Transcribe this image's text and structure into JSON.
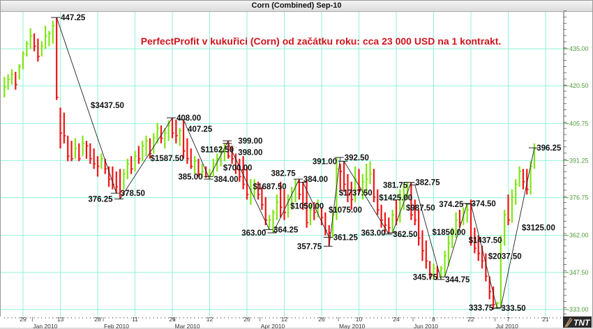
{
  "window": {
    "title": "Corn (Combined) Sep-10"
  },
  "chart_data": {
    "type": "ohlc-bar",
    "title": "Corn (Combined) Sep-10",
    "annotation": "PerfectProfit v kukuřici (Corn) od začátku roku: cca 23 000 USD na 1 kontrakt.",
    "ylim": [
      322,
      455
    ],
    "y_ticks": [
      {
        "value": 333.0,
        "label": "333.00"
      },
      {
        "value": 347.5,
        "label": "347.50"
      },
      {
        "value": 362.0,
        "label": "362.00"
      },
      {
        "value": 376.75,
        "label": "376.75"
      },
      {
        "value": 391.25,
        "label": "391.25"
      },
      {
        "value": 405.75,
        "label": "405.75"
      },
      {
        "value": 420.5,
        "label": "420.50"
      },
      {
        "value": 435.0,
        "label": "435.00"
      }
    ],
    "x_day_ticks": [
      {
        "date": "2009-12-29",
        "label": "29"
      },
      {
        "date": "2010-01-13",
        "label": "13"
      },
      {
        "date": "2010-01-28",
        "label": "28"
      },
      {
        "date": "2010-02-11",
        "label": "11"
      },
      {
        "date": "2010-02-26",
        "label": "26"
      },
      {
        "date": "2010-03-12",
        "label": "12"
      },
      {
        "date": "2010-03-26",
        "label": "26"
      },
      {
        "date": "2010-04-12",
        "label": "12"
      },
      {
        "date": "2010-04-26",
        "label": "26"
      },
      {
        "date": "2010-05-10",
        "label": "10"
      },
      {
        "date": "2010-05-24",
        "label": "24"
      },
      {
        "date": "2010-06-08",
        "label": "8"
      },
      {
        "date": "2010-06-22",
        "label": "22"
      },
      {
        "date": "2010-07-07",
        "label": "7"
      },
      {
        "date": "2010-07-21",
        "label": "21"
      }
    ],
    "x_month_ticks": [
      {
        "date": "2010-01-04",
        "label": "Jan 2010"
      },
      {
        "date": "2010-02-01",
        "label": "Feb 2010"
      },
      {
        "date": "2010-03-01",
        "label": "Mar 2010"
      },
      {
        "date": "2010-04-01",
        "label": "Apr 2010"
      },
      {
        "date": "2010-05-03",
        "label": "May 2010"
      },
      {
        "date": "2010-06-01",
        "label": "Jun 2010"
      },
      {
        "date": "2010-07-01",
        "label": "Jul 2010"
      }
    ],
    "grid": true,
    "colors": {
      "up": "#7ee612",
      "down": "#f01414",
      "grid": "#8ff2da",
      "zigzag": "#222222",
      "annotation": "#d0141c"
    },
    "bars_fields": [
      "high",
      "low",
      "close"
    ],
    "bars": [
      [
        424,
        416,
        420
      ],
      [
        425,
        419,
        423
      ],
      [
        427,
        421,
        425
      ],
      [
        426,
        419,
        421
      ],
      [
        429,
        423,
        428
      ],
      [
        434,
        427,
        433
      ],
      [
        438,
        432,
        437
      ],
      [
        443,
        435,
        440
      ],
      [
        441,
        434,
        436
      ],
      [
        439,
        430,
        432
      ],
      [
        438,
        432,
        436
      ],
      [
        444,
        435,
        440
      ],
      [
        442,
        436,
        441
      ],
      [
        446,
        437,
        444
      ],
      [
        447.25,
        415,
        416
      ],
      [
        412,
        396,
        402
      ],
      [
        410,
        398,
        401
      ],
      [
        401,
        391,
        393
      ],
      [
        399,
        391,
        392
      ],
      [
        400,
        392,
        396
      ],
      [
        398,
        391,
        392
      ],
      [
        401,
        393,
        398
      ],
      [
        399,
        392,
        397
      ],
      [
        398,
        390,
        392
      ],
      [
        396,
        388,
        390
      ],
      [
        393,
        385,
        389
      ],
      [
        394,
        388,
        392
      ],
      [
        392,
        386,
        388
      ],
      [
        389,
        381,
        384
      ],
      [
        389,
        380,
        382
      ],
      [
        387,
        378.5,
        381
      ],
      [
        388,
        376.25,
        379
      ],
      [
        388,
        380,
        386
      ],
      [
        392,
        384,
        390
      ],
      [
        393,
        386,
        388
      ],
      [
        395,
        387,
        393
      ],
      [
        397,
        390,
        392
      ],
      [
        399,
        391,
        397
      ],
      [
        401,
        393,
        399
      ],
      [
        400,
        392,
        394
      ],
      [
        402,
        394,
        400
      ],
      [
        406,
        398,
        404
      ],
      [
        405,
        398,
        400
      ],
      [
        404,
        396,
        402
      ],
      [
        407,
        399,
        405
      ],
      [
        408,
        400,
        402
      ],
      [
        407.25,
        398,
        401
      ],
      [
        404,
        397,
        403
      ],
      [
        407.25,
        392,
        395
      ],
      [
        400,
        390,
        392
      ],
      [
        396,
        388,
        389
      ],
      [
        393,
        386,
        391
      ],
      [
        392,
        385,
        386
      ],
      [
        390,
        384.5,
        387
      ],
      [
        389,
        384.5,
        385
      ],
      [
        388,
        384,
        386
      ],
      [
        392,
        385,
        390
      ],
      [
        394,
        387,
        392
      ],
      [
        397,
        389,
        395
      ],
      [
        398,
        391,
        396
      ],
      [
        399,
        392,
        393
      ],
      [
        397,
        390,
        392
      ],
      [
        394,
        386,
        388
      ],
      [
        392,
        383,
        385
      ],
      [
        393,
        380,
        382
      ],
      [
        389,
        376,
        378
      ],
      [
        384,
        374,
        380
      ],
      [
        384,
        377,
        382
      ],
      [
        383,
        376,
        378
      ],
      [
        381,
        372,
        374
      ],
      [
        377,
        366,
        368
      ],
      [
        370,
        364.25,
        368
      ],
      [
        372,
        363,
        371
      ],
      [
        378,
        368,
        375
      ],
      [
        383,
        369,
        373
      ],
      [
        380,
        368,
        371
      ],
      [
        378,
        369,
        376
      ],
      [
        381,
        372,
        379
      ],
      [
        384,
        375,
        382
      ],
      [
        384,
        376,
        378
      ],
      [
        383,
        372,
        374
      ],
      [
        384,
        365,
        367
      ],
      [
        374,
        366,
        372
      ],
      [
        375,
        368,
        371
      ],
      [
        376,
        369,
        374
      ],
      [
        373,
        366,
        369
      ],
      [
        371,
        362,
        364
      ],
      [
        366,
        357.75,
        363
      ],
      [
        372,
        361,
        370
      ],
      [
        392.5,
        368,
        388
      ],
      [
        390,
        380,
        387
      ],
      [
        391,
        379,
        382
      ],
      [
        386,
        375,
        378
      ],
      [
        383,
        372,
        376
      ],
      [
        389,
        375,
        384
      ],
      [
        388,
        378,
        380
      ],
      [
        386,
        376,
        383
      ],
      [
        390,
        378,
        384
      ],
      [
        391,
        382,
        386
      ],
      [
        388,
        375,
        377
      ],
      [
        380,
        370,
        372
      ],
      [
        374,
        365,
        368
      ],
      [
        371,
        363,
        366
      ],
      [
        369,
        362.5,
        365
      ],
      [
        372,
        363,
        370
      ],
      [
        376,
        366,
        368
      ],
      [
        380,
        367,
        377
      ],
      [
        382,
        372,
        378
      ],
      [
        383,
        376,
        381
      ],
      [
        382.75,
        368,
        370
      ],
      [
        376,
        366,
        368
      ],
      [
        372,
        358,
        361
      ],
      [
        364,
        352,
        356
      ],
      [
        360,
        349,
        352
      ],
      [
        352,
        345,
        347
      ],
      [
        351,
        344.75,
        349
      ],
      [
        350,
        345,
        348
      ],
      [
        350,
        344.75,
        349
      ],
      [
        356,
        346,
        354
      ],
      [
        362,
        350,
        359
      ],
      [
        365,
        357,
        363
      ],
      [
        371,
        361,
        368
      ],
      [
        372,
        365,
        367
      ],
      [
        373,
        366,
        371
      ],
      [
        374.5,
        367,
        372
      ],
      [
        376,
        358,
        360
      ],
      [
        365,
        355,
        357
      ],
      [
        362,
        352,
        355
      ],
      [
        358,
        349,
        352
      ],
      [
        355,
        344,
        346
      ],
      [
        346,
        337,
        340
      ],
      [
        342,
        333,
        335
      ],
      [
        336,
        333.25,
        335.5
      ],
      [
        362,
        334,
        360
      ],
      [
        372,
        358,
        370
      ],
      [
        378,
        366,
        368
      ],
      [
        380,
        367,
        377
      ],
      [
        384,
        374,
        382
      ],
      [
        389,
        381,
        387
      ],
      [
        388,
        380,
        383
      ],
      [
        388,
        378,
        380
      ],
      [
        391,
        378,
        389
      ],
      [
        398,
        388,
        396
      ]
    ],
    "trades": [
      {
        "side": "short",
        "entry": {
          "date": "2010-01-12",
          "price": 447.25,
          "label": "447.25"
        },
        "exit": {
          "date": "2010-02-04",
          "price": 378.5,
          "label": "378.50"
        },
        "profit": "$3437.50"
      },
      {
        "side": "long",
        "entry": {
          "date": "2010-02-05",
          "price": 376.25,
          "label": "376.25"
        },
        "exit": {
          "date": "2010-02-26",
          "price": 408.0,
          "label": "408.00"
        },
        "profit": "$1587.50"
      },
      {
        "side": "short",
        "entry": {
          "date": "2010-03-03",
          "price": 407.25,
          "label": "407.25"
        },
        "exit": {
          "date": "2010-03-12",
          "price": 384.0,
          "label": "384.00"
        },
        "profit": "$1162.50"
      },
      {
        "side": "long",
        "entry": {
          "date": "2010-03-12",
          "price": 385.0,
          "label": "385.00"
        },
        "exit": {
          "date": "2010-03-19",
          "price": 399.0,
          "label": "399.00"
        },
        "profit": "$700.00"
      },
      {
        "side": "short",
        "entry": {
          "date": "2010-03-19",
          "price": 398.0,
          "label": "398.00"
        },
        "exit": {
          "date": "2010-04-06",
          "price": 364.25,
          "label": "364.25"
        },
        "profit": "$1687.50"
      },
      {
        "side": "long",
        "entry": {
          "date": "2010-04-07",
          "price": 363.0,
          "label": "363.00"
        },
        "exit": {
          "date": "2010-04-16",
          "price": 384.0,
          "label": "384.00"
        },
        "profit": "$1050.00"
      },
      {
        "side": "short",
        "entry": {
          "date": "2010-04-19",
          "price": 382.75,
          "label": "382.75"
        },
        "exit": {
          "date": "2010-04-28",
          "price": 361.25,
          "label": "361.25"
        },
        "profit": "$1075.00"
      },
      {
        "side": "long",
        "entry": {
          "date": "2010-04-28",
          "price": 357.75,
          "label": "357.75"
        },
        "exit": {
          "date": "2010-05-03",
          "price": 392.5,
          "label": "392.50"
        },
        "profit": "$1737.50"
      },
      {
        "side": "short",
        "entry": {
          "date": "2010-05-04",
          "price": 391.0,
          "label": "391.00"
        },
        "exit": {
          "date": "2010-05-20",
          "price": 362.5,
          "label": "362.50"
        },
        "profit": "$1425.00"
      },
      {
        "side": "long",
        "entry": {
          "date": "2010-05-21",
          "price": 363.0,
          "label": "363.00"
        },
        "exit": {
          "date": "2010-05-28",
          "price": 382.75,
          "label": "382.75"
        },
        "profit": "$987.50"
      },
      {
        "side": "short",
        "entry": {
          "date": "2010-06-01",
          "price": 381.75,
          "label": "381.75"
        },
        "exit": {
          "date": "2010-06-10",
          "price": 344.75,
          "label": "344.75"
        },
        "profit": "$1850.00"
      },
      {
        "side": "long",
        "entry": {
          "date": "2010-06-11",
          "price": 345.75,
          "label": "345.75"
        },
        "exit": {
          "date": "2010-06-21",
          "price": 374.5,
          "label": "374.50"
        },
        "profit": "$1437.50"
      },
      {
        "side": "short",
        "entry": {
          "date": "2010-06-22",
          "price": 374.25,
          "label": "374.25"
        },
        "exit": {
          "date": "2010-07-01",
          "price": 333.5,
          "label": "333.50"
        },
        "profit": "$2037.50"
      },
      {
        "side": "long",
        "entry": {
          "date": "2010-07-02",
          "price": 333.75,
          "label": "333.75"
        },
        "exit": {
          "date": "2010-07-16",
          "price": 396.25,
          "label": "396.25"
        },
        "profit": "$3125.00"
      }
    ]
  },
  "logo": {
    "text": "TNT"
  }
}
